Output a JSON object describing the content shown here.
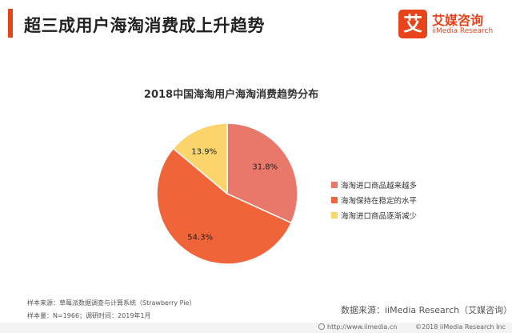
{
  "header": {
    "title": "超三成用户海淘消费成上升趋势"
  },
  "logo": {
    "mark": "艾",
    "name_cn": "艾媒咨询",
    "name_en": "iiMedia Research",
    "color": "#e8431b"
  },
  "chart_data": {
    "type": "pie",
    "title": "2018中国海淘用户海淘消费趋势分布",
    "unit": "%",
    "slices": [
      {
        "label": "海淘进口商品越来越多",
        "value": 31.8,
        "display": "31.8%",
        "color": "#e8786a"
      },
      {
        "label": "海淘保持在稳定的水平",
        "value": 54.3,
        "display": "54.3%",
        "color": "#f0643a"
      },
      {
        "label": "海淘进口商品逐渐减少",
        "value": 13.9,
        "display": "13.9%",
        "color": "#fbd56b"
      }
    ],
    "start_angle_deg": 0,
    "direction": "clockwise",
    "legend_placement": "right"
  },
  "footer": {
    "sample_source": "样本来源：草莓派数据调查与计算系统（Strawberry Pie）",
    "sample_size": "样本量：N=1966；调研时间：2019年1月",
    "data_source": "数据来源：iiMedia Research（艾媒咨询）",
    "url": "http://www.iimedia.cn",
    "copyright": "©2018  iiMedia Research  Inc"
  }
}
